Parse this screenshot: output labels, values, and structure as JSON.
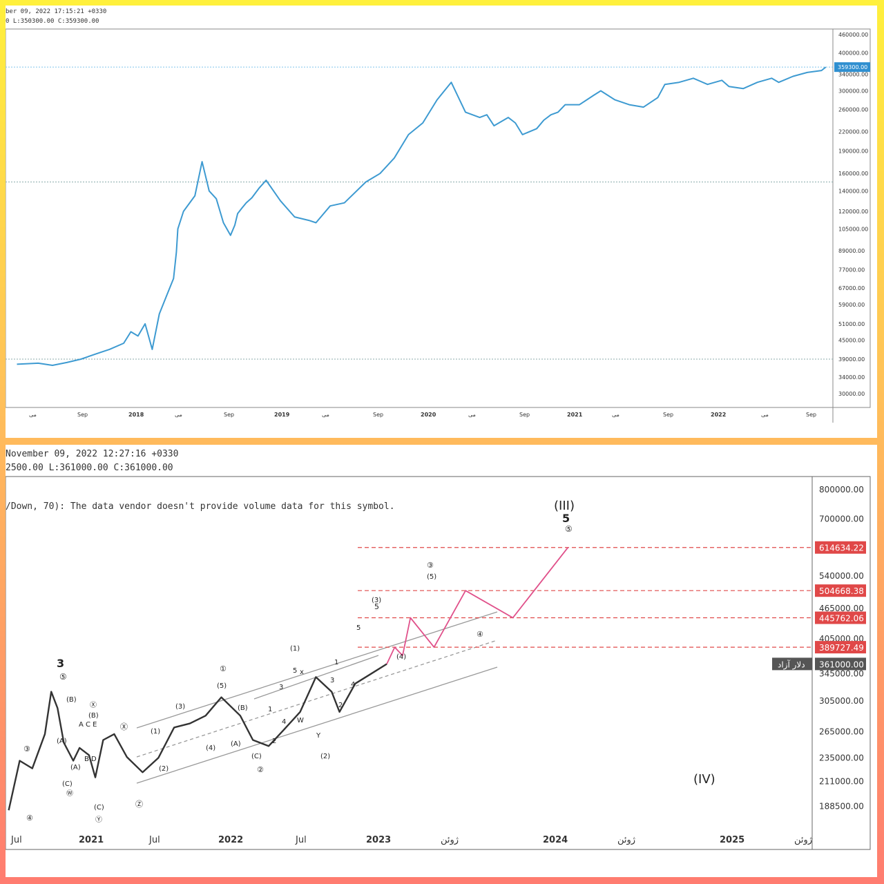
{
  "chart_data": [
    {
      "type": "line",
      "header_line1": "ber 09, 2022 17:15:21 +0330",
      "header_line2": "0 L:350300.00 C:359300.00",
      "y_scale": "log",
      "ylim": [
        27000,
        480000
      ],
      "y_ticks": [
        "460000.00",
        "400000.00",
        "340000.00",
        "300000.00",
        "260000.00",
        "220000.00",
        "190000.00",
        "160000.00",
        "140000.00",
        "120000.00",
        "105000.00",
        "89000.00",
        "77000.00",
        "67000.00",
        "59000.00",
        "51000.00",
        "45000.00",
        "39000.00",
        "34000.00",
        "30000.00"
      ],
      "x_ticks": [
        "می",
        "Sep",
        "2018",
        "می",
        "Sep",
        "2019",
        "می",
        "Sep",
        "2020",
        "می",
        "Sep",
        "2021",
        "می",
        "Sep",
        "2022",
        "می",
        "Sep"
      ],
      "last_price_label": "359300.00",
      "last_price": 359300,
      "ref_lines": [
        359300,
        150000,
        39000
      ],
      "line_color": "#3d9ad1",
      "series": [
        {
          "x": [
            2017.25,
            2017.4,
            2017.5,
            2017.6,
            2017.7,
            2017.8,
            2017.9,
            2018.0,
            2018.05,
            2018.1,
            2018.15,
            2018.2,
            2018.25,
            2018.3,
            2018.35,
            2018.37,
            2018.38,
            2018.42,
            2018.5,
            2018.55,
            2018.6,
            2018.65,
            2018.7,
            2018.75,
            2018.78,
            2018.8,
            2018.83,
            2018.86,
            2018.9,
            2018.95,
            2019.0,
            2019.1,
            2019.2,
            2019.3,
            2019.35,
            2019.45,
            2019.55,
            2019.7,
            2019.8,
            2019.9,
            2020.0,
            2020.1,
            2020.2,
            2020.3,
            2020.4,
            2020.5,
            2020.55,
            2020.6,
            2020.7,
            2020.75,
            2020.8,
            2020.9,
            2020.95,
            2021.0,
            2021.05,
            2021.1,
            2021.2,
            2021.3,
            2021.35,
            2021.45,
            2021.55,
            2021.65,
            2021.75,
            2021.8,
            2021.9,
            2022.0,
            2022.1,
            2022.2,
            2022.25,
            2022.35,
            2022.45,
            2022.55,
            2022.6,
            2022.7,
            2022.8,
            2022.9,
            2022.93
          ],
          "y": [
            37500,
            37800,
            37200,
            38000,
            39000,
            40500,
            42000,
            44000,
            48000,
            46500,
            51000,
            42000,
            55000,
            63000,
            72000,
            88000,
            105000,
            120000,
            135000,
            175000,
            140000,
            132000,
            110000,
            100000,
            108000,
            118000,
            123000,
            128000,
            133000,
            143000,
            152000,
            130000,
            115000,
            112000,
            110000,
            125000,
            128000,
            150000,
            160000,
            180000,
            215000,
            235000,
            280000,
            320000,
            255000,
            245000,
            250000,
            230000,
            245000,
            235000,
            215000,
            225000,
            240000,
            250000,
            255000,
            270000,
            270000,
            290000,
            300000,
            280000,
            270000,
            265000,
            285000,
            315000,
            320000,
            330000,
            315000,
            325000,
            310000,
            305000,
            320000,
            330000,
            320000,
            335000,
            345000,
            350000,
            359300
          ]
        }
      ]
    },
    {
      "type": "line",
      "header_line1": "November 09, 2022 12:27:16 +0330",
      "header_line2": "2500.00 L:361000.00 C:361000.00",
      "note": "/Down, 70): The data vendor doesn't provide volume data for this symbol.",
      "y_scale": "log",
      "ylim": [
        170000,
        850000
      ],
      "y_ticks": [
        "800000.00",
        "700000.00",
        "540000.00",
        "465000.00",
        "405000.00",
        "345000.00",
        "305000.00",
        "265000.00",
        "235000.00",
        "211000.00",
        "188500.00"
      ],
      "x_ticks": [
        "Jul",
        "2021",
        "Jul",
        "2022",
        "Jul",
        "2023",
        "ژوئن",
        "2024",
        "ژوئن",
        "2025",
        "ژوئن"
      ],
      "price_levels": [
        {
          "label": "614634.22",
          "value": 614634.22,
          "color": "#e04848"
        },
        {
          "label": "504668.38",
          "value": 504668.38,
          "color": "#e04848"
        },
        {
          "label": "445762.06",
          "value": 445762.06,
          "color": "#e04848"
        },
        {
          "label": "389727.49",
          "value": 389727.49,
          "color": "#e04848"
        },
        {
          "label": "361000.00",
          "value": 361000,
          "color": "#555555",
          "tag": "دلار آزاد"
        }
      ],
      "series": [
        {
          "x": [
            2020.45,
            2020.52,
            2020.6,
            2020.68,
            2020.72,
            2020.76,
            2020.8,
            2020.86,
            2020.9,
            2020.96,
            2021.0,
            2021.05,
            2021.12,
            2021.2,
            2021.3,
            2021.4,
            2021.5,
            2021.6,
            2021.7,
            2021.8,
            2021.92,
            2022.0,
            2022.1,
            2022.2,
            2022.3,
            2022.4,
            2022.5,
            2022.55,
            2022.65,
            2022.75,
            2022.85
          ],
          "y": [
            185000,
            232000,
            224000,
            262000,
            318000,
            295000,
            252000,
            232000,
            246000,
            238000,
            215000,
            255000,
            262000,
            236000,
            220000,
            235000,
            270000,
            275000,
            285000,
            310000,
            285000,
            255000,
            248000,
            268000,
            290000,
            340000,
            318000,
            290000,
            330000,
            345000,
            361000
          ]
        },
        {
          "name": "projection",
          "x": [
            2022.85,
            2022.9,
            2022.95,
            2023.0,
            2023.15,
            2023.35,
            2023.65,
            2024.0
          ],
          "y": [
            361000,
            389727.49,
            375000,
            445762.06,
            389727.49,
            504668.38,
            445762.06,
            614634.22
          ]
        }
      ],
      "wave_labels": [
        "3",
        "⑤",
        "③",
        "④",
        "(B)",
        "(A)",
        "(A)",
        "(C)",
        "Ⓦ",
        "Ⓧ",
        "(B)",
        "A C E",
        "B D",
        "(C)",
        "Ⓨ",
        "Ⓧ",
        "Ⓩ",
        "(1)",
        "(2)",
        "(3)",
        "(4)",
        "①",
        "(5)",
        "(B)",
        "(A)",
        "(C)",
        "②",
        "1",
        "2",
        "3",
        "4",
        "5",
        "x",
        "W",
        "Y",
        "(2)",
        "(1)",
        "1",
        "2",
        "3",
        "4",
        "5",
        "(3)",
        "5",
        "(4)",
        "③",
        "(5)",
        "④",
        "(III)",
        "5",
        "⑤",
        "(IV)"
      ]
    }
  ]
}
